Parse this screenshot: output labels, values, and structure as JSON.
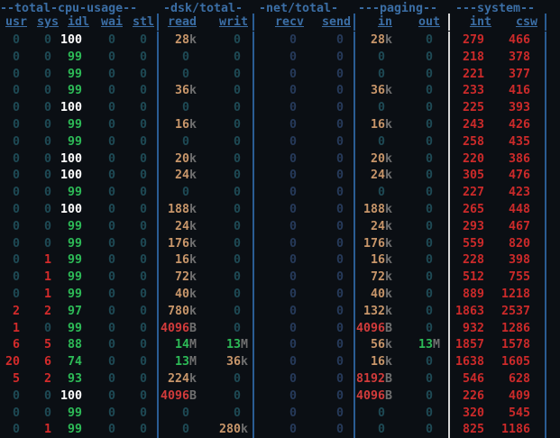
{
  "colors": {
    "header": "#3b6ea5",
    "zero": "#1e4a55",
    "dim_zero": "#3d4452",
    "idle_high": "#ffffff",
    "idle_mid": "#2dbb57",
    "cpu_red": "#cc2a2a",
    "io_tan": "#c8966a",
    "io_red": "#d23b3b",
    "net_zero": "#263a5a",
    "sys_red": "#d42b2b",
    "green": "#2dbb57",
    "unit": "#6f6f6f"
  },
  "groups": [
    {
      "label": "--total-cpu-usage--"
    },
    {
      "label": "-dsk/total-"
    },
    {
      "label": "-net/total-"
    },
    {
      "label": "---paging--"
    },
    {
      "label": "---system--"
    }
  ],
  "columns": [
    "usr",
    "sys",
    "idl",
    "wai",
    "stl",
    "read",
    "writ",
    "recv",
    "send",
    "in",
    "out",
    "int",
    "csw"
  ],
  "rows": [
    {
      "usr": "0",
      "sys": "0",
      "idl": "100",
      "wai": "0",
      "stl": "0",
      "read": "28",
      "read_u": "k",
      "writ": "0",
      "recv": "0",
      "send": "0",
      "in": "28",
      "in_u": "k",
      "out": "0",
      "int": "279",
      "csw": "466"
    },
    {
      "usr": "0",
      "sys": "0",
      "idl": "99",
      "wai": "0",
      "stl": "0",
      "read": "0",
      "writ": "0",
      "recv": "0",
      "send": "0",
      "in": "0",
      "out": "0",
      "int": "218",
      "csw": "378"
    },
    {
      "usr": "0",
      "sys": "0",
      "idl": "99",
      "wai": "0",
      "stl": "0",
      "read": "0",
      "writ": "0",
      "recv": "0",
      "send": "0",
      "in": "0",
      "out": "0",
      "int": "221",
      "csw": "377"
    },
    {
      "usr": "0",
      "sys": "0",
      "idl": "99",
      "wai": "0",
      "stl": "0",
      "read": "36",
      "read_u": "k",
      "writ": "0",
      "recv": "0",
      "send": "0",
      "in": "36",
      "in_u": "k",
      "out": "0",
      "int": "233",
      "csw": "416"
    },
    {
      "usr": "0",
      "sys": "0",
      "idl": "100",
      "wai": "0",
      "stl": "0",
      "read": "0",
      "writ": "0",
      "recv": "0",
      "send": "0",
      "in": "0",
      "out": "0",
      "int": "225",
      "csw": "393"
    },
    {
      "usr": "0",
      "sys": "0",
      "idl": "99",
      "wai": "0",
      "stl": "0",
      "read": "16",
      "read_u": "k",
      "writ": "0",
      "recv": "0",
      "send": "0",
      "in": "16",
      "in_u": "k",
      "out": "0",
      "int": "243",
      "csw": "426"
    },
    {
      "usr": "0",
      "sys": "0",
      "idl": "99",
      "wai": "0",
      "stl": "0",
      "read": "0",
      "writ": "0",
      "recv": "0",
      "send": "0",
      "in": "0",
      "out": "0",
      "int": "258",
      "csw": "435"
    },
    {
      "usr": "0",
      "sys": "0",
      "idl": "100",
      "wai": "0",
      "stl": "0",
      "read": "20",
      "read_u": "k",
      "writ": "0",
      "recv": "0",
      "send": "0",
      "in": "20",
      "in_u": "k",
      "out": "0",
      "int": "220",
      "csw": "386"
    },
    {
      "usr": "0",
      "sys": "0",
      "idl": "100",
      "wai": "0",
      "stl": "0",
      "read": "24",
      "read_u": "k",
      "writ": "0",
      "recv": "0",
      "send": "0",
      "in": "24",
      "in_u": "k",
      "out": "0",
      "int": "305",
      "csw": "476"
    },
    {
      "usr": "0",
      "sys": "0",
      "idl": "99",
      "wai": "0",
      "stl": "0",
      "read": "0",
      "writ": "0",
      "recv": "0",
      "send": "0",
      "in": "0",
      "out": "0",
      "int": "227",
      "csw": "423"
    },
    {
      "usr": "0",
      "sys": "0",
      "idl": "100",
      "wai": "0",
      "stl": "0",
      "read": "188",
      "read_u": "k",
      "writ": "0",
      "recv": "0",
      "send": "0",
      "in": "188",
      "in_u": "k",
      "out": "0",
      "int": "265",
      "csw": "448"
    },
    {
      "usr": "0",
      "sys": "0",
      "idl": "99",
      "wai": "0",
      "stl": "0",
      "read": "24",
      "read_u": "k",
      "writ": "0",
      "recv": "0",
      "send": "0",
      "in": "24",
      "in_u": "k",
      "out": "0",
      "int": "293",
      "csw": "467"
    },
    {
      "usr": "0",
      "sys": "0",
      "idl": "99",
      "wai": "0",
      "stl": "0",
      "read": "176",
      "read_u": "k",
      "writ": "0",
      "recv": "0",
      "send": "0",
      "in": "176",
      "in_u": "k",
      "out": "0",
      "int": "559",
      "csw": "820"
    },
    {
      "usr": "0",
      "sys": "1",
      "idl": "99",
      "wai": "0",
      "stl": "0",
      "read": "16",
      "read_u": "k",
      "writ": "0",
      "recv": "0",
      "send": "0",
      "in": "16",
      "in_u": "k",
      "out": "0",
      "int": "228",
      "csw": "398"
    },
    {
      "usr": "0",
      "sys": "1",
      "idl": "99",
      "wai": "0",
      "stl": "0",
      "read": "72",
      "read_u": "k",
      "writ": "0",
      "recv": "0",
      "send": "0",
      "in": "72",
      "in_u": "k",
      "out": "0",
      "int": "512",
      "csw": "755"
    },
    {
      "usr": "0",
      "sys": "1",
      "idl": "99",
      "wai": "0",
      "stl": "0",
      "read": "40",
      "read_u": "k",
      "writ": "0",
      "recv": "0",
      "send": "0",
      "in": "40",
      "in_u": "k",
      "out": "0",
      "int": "889",
      "csw": "1218"
    },
    {
      "usr": "2",
      "sys": "2",
      "idl": "97",
      "wai": "0",
      "stl": "0",
      "read": "780",
      "read_u": "k",
      "writ": "0",
      "recv": "0",
      "send": "0",
      "in": "132",
      "in_u": "k",
      "out": "0",
      "int": "1863",
      "csw": "2537"
    },
    {
      "usr": "1",
      "sys": "0",
      "idl": "99",
      "wai": "0",
      "stl": "0",
      "read": "4096",
      "read_u": "B",
      "writ": "0",
      "recv": "0",
      "send": "0",
      "in": "4096",
      "in_u": "B",
      "out": "0",
      "int": "932",
      "csw": "1286"
    },
    {
      "usr": "6",
      "sys": "5",
      "idl": "88",
      "wai": "0",
      "stl": "0",
      "read": "14",
      "read_u": "M",
      "writ": "13",
      "writ_u": "M",
      "recv": "0",
      "send": "0",
      "in": "56",
      "in_u": "k",
      "out": "13",
      "out_u": "M",
      "int": "1857",
      "csw": "1578"
    },
    {
      "usr": "20",
      "sys": "6",
      "idl": "74",
      "wai": "0",
      "stl": "0",
      "read": "13",
      "read_u": "M",
      "writ": "36",
      "writ_u": "k",
      "recv": "0",
      "send": "0",
      "in": "16",
      "in_u": "k",
      "out": "0",
      "int": "1638",
      "csw": "1605"
    },
    {
      "usr": "5",
      "sys": "2",
      "idl": "93",
      "wai": "0",
      "stl": "0",
      "read": "224",
      "read_u": "k",
      "writ": "0",
      "recv": "0",
      "send": "0",
      "in": "8192",
      "in_u": "B",
      "out": "0",
      "int": "546",
      "csw": "628"
    },
    {
      "usr": "0",
      "sys": "0",
      "idl": "100",
      "wai": "0",
      "stl": "0",
      "read": "4096",
      "read_u": "B",
      "writ": "0",
      "recv": "0",
      "send": "0",
      "in": "4096",
      "in_u": "B",
      "out": "0",
      "int": "226",
      "csw": "409"
    },
    {
      "usr": "0",
      "sys": "0",
      "idl": "99",
      "wai": "0",
      "stl": "0",
      "read": "0",
      "writ": "0",
      "recv": "0",
      "send": "0",
      "in": "0",
      "out": "0",
      "int": "320",
      "csw": "545"
    },
    {
      "usr": "0",
      "sys": "1",
      "idl": "99",
      "wai": "0",
      "stl": "0",
      "read": "0",
      "writ": "280",
      "writ_u": "k",
      "recv": "0",
      "send": "0",
      "in": "0",
      "out": "0",
      "int": "825",
      "csw": "1186"
    }
  ]
}
